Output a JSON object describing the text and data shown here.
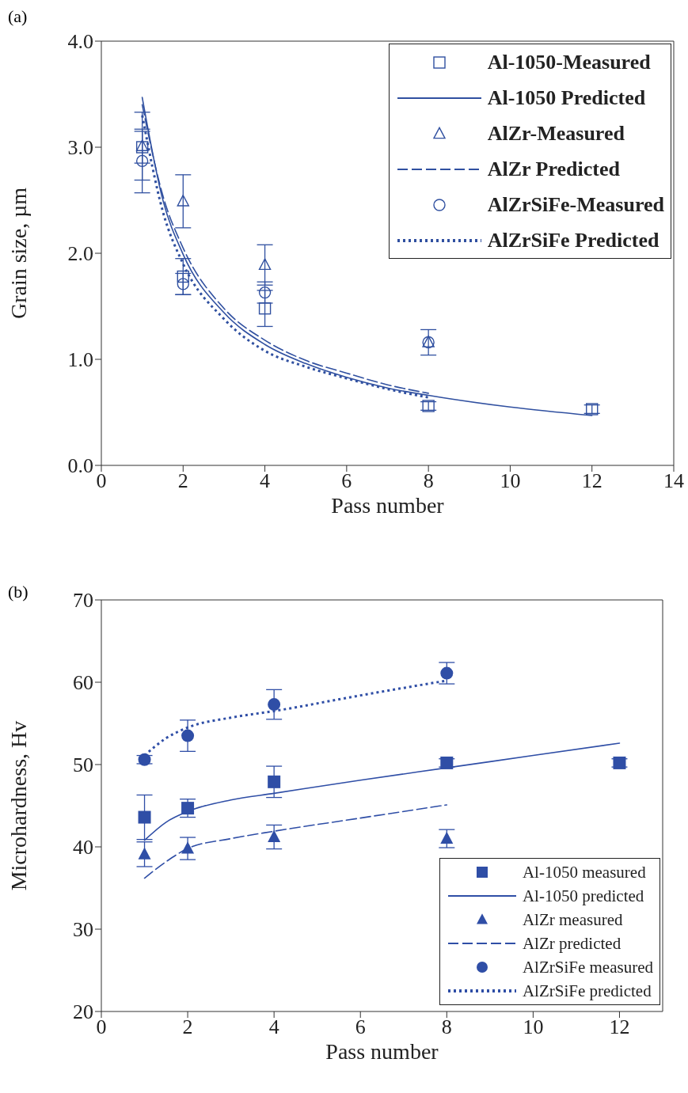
{
  "chart_data": [
    {
      "type": "scatter",
      "title": "(a)",
      "xlabel": "Pass number",
      "ylabel": "Grain size, µm",
      "xlim": [
        0,
        14
      ],
      "ylim": [
        0,
        4
      ],
      "xticks": [
        0,
        2,
        4,
        6,
        8,
        10,
        12,
        14
      ],
      "yticks": [
        {
          "value": 0,
          "label": "0.0"
        },
        {
          "value": 1,
          "label": "1.0"
        },
        {
          "value": 2,
          "label": "2.0"
        },
        {
          "value": 3,
          "label": "3.0"
        },
        {
          "value": 4,
          "label": "4.0"
        }
      ],
      "grid": false,
      "legend": "top right",
      "series": [
        {
          "name": "Al-1050-Measured",
          "type": "scatter",
          "marker": "square",
          "color": "#3050a0",
          "x": [
            1,
            2,
            4,
            8,
            12
          ],
          "values": [
            3.0,
            1.78,
            1.48,
            0.56,
            0.53
          ],
          "errors": [
            0.15,
            0.17,
            0.17,
            0.04,
            0.04
          ]
        },
        {
          "name": "Al-1050 Predicted",
          "type": "line",
          "marker": "none",
          "line_style": "solid",
          "color": "#3050a0",
          "x": [
            1,
            1.5,
            2,
            3,
            4,
            5,
            6,
            7,
            8,
            10,
            12
          ],
          "values": [
            3.47,
            2.51,
            1.99,
            1.44,
            1.14,
            0.96,
            0.83,
            0.73,
            0.66,
            0.55,
            0.47
          ]
        },
        {
          "name": "AlZr-Measured",
          "type": "scatter",
          "marker": "triangle",
          "color": "#3050a0",
          "x": [
            1,
            2,
            4,
            8
          ],
          "values": [
            3.01,
            2.49,
            1.89,
            1.16
          ],
          "errors": [
            0.32,
            0.25,
            0.19,
            null
          ]
        },
        {
          "name": "AlZr Predicted",
          "type": "line",
          "marker": "none",
          "line_style": "dashed",
          "color": "#3050a0",
          "x": [
            1,
            1.5,
            2,
            3,
            4,
            5,
            6,
            7,
            8
          ],
          "values": [
            3.4,
            2.55,
            2.05,
            1.48,
            1.18,
            0.99,
            0.87,
            0.76,
            0.68
          ]
        },
        {
          "name": "AlZrSiFe-Measured",
          "type": "scatter",
          "marker": "circle",
          "color": "#3050a0",
          "x": [
            1,
            2,
            4,
            8
          ],
          "values": [
            2.87,
            1.71,
            1.63,
            1.16
          ],
          "errors": [
            0.3,
            0.1,
            0.1,
            0.12
          ]
        },
        {
          "name": "AlZrSiFe Predicted",
          "type": "line",
          "marker": "none",
          "line_style": "dotted",
          "color": "#3050a0",
          "x": [
            1,
            1.5,
            2,
            3,
            4,
            5,
            6,
            7,
            8
          ],
          "values": [
            3.3,
            2.4,
            1.9,
            1.38,
            1.08,
            0.93,
            0.82,
            0.72,
            0.64
          ]
        }
      ]
    },
    {
      "type": "scatter",
      "title": "(b)",
      "xlabel": "Pass number",
      "ylabel": "Microhardness, Hv",
      "xlim": [
        0,
        13
      ],
      "ylim": [
        20,
        70
      ],
      "xticks": [
        0,
        2,
        4,
        6,
        8,
        10,
        12
      ],
      "yticks": [
        20,
        30,
        40,
        50,
        60,
        70
      ],
      "grid": false,
      "legend": "bottom right",
      "series": [
        {
          "name": "Al-1050 measured",
          "type": "scatter",
          "marker": "square",
          "color": "#2f4ea6",
          "x": [
            1,
            2,
            4,
            8,
            12
          ],
          "values": [
            43.6,
            44.7,
            47.9,
            50.2,
            50.2
          ],
          "errors": [
            2.7,
            1.1,
            1.9,
            0.5,
            0.5
          ]
        },
        {
          "name": "Al-1050 predicted",
          "type": "line",
          "marker": "none",
          "line_style": "solid",
          "color": "#2f4ea6",
          "x": [
            1,
            1.5,
            2,
            3,
            4,
            6,
            8,
            10,
            12
          ],
          "values": [
            40.8,
            43.0,
            44.3,
            45.7,
            46.5,
            48.1,
            49.6,
            51.1,
            52.6
          ]
        },
        {
          "name": "AlZr measured",
          "type": "scatter",
          "marker": "triangle",
          "color": "#2f4ea6",
          "x": [
            1,
            2,
            4,
            8
          ],
          "values": [
            39.1,
            39.8,
            41.2,
            41.0
          ],
          "errors": [
            1.5,
            1.35,
            1.45,
            1.1
          ]
        },
        {
          "name": "AlZr predicted",
          "type": "line",
          "marker": "none",
          "line_style": "dashed",
          "color": "#2f4ea6",
          "x": [
            1,
            1.5,
            2,
            3,
            4,
            6,
            8
          ],
          "values": [
            36.2,
            38.2,
            39.8,
            41.0,
            41.9,
            43.5,
            45.1
          ]
        },
        {
          "name": "AlZrSiFe measured",
          "type": "scatter",
          "marker": "circle",
          "color": "#2f4ea6",
          "x": [
            1,
            2,
            4,
            8
          ],
          "values": [
            50.6,
            53.5,
            57.3,
            61.1
          ],
          "errors": [
            0.5,
            1.9,
            1.8,
            1.3
          ]
        },
        {
          "name": "AlZrSiFe predicted",
          "type": "line",
          "marker": "none",
          "line_style": "dotted",
          "color": "#2f4ea6",
          "x": [
            1,
            1.5,
            2,
            3,
            4,
            6,
            8
          ],
          "values": [
            51.1,
            53.2,
            54.5,
            55.7,
            56.5,
            58.4,
            60.2
          ]
        }
      ]
    }
  ]
}
